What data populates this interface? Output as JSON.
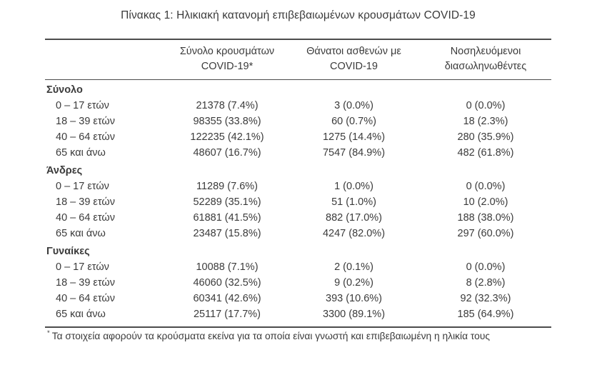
{
  "title": "Πίνακας 1: Ηλικιακή κατανομή επιβεβαιωμένων κρουσμάτων COVID-19",
  "table": {
    "headers": [
      {
        "line1": "Σύνολο κρουσμάτων",
        "line2": "COVID-19*"
      },
      {
        "line1": "Θάνατοι ασθενών με",
        "line2": "COVID-19"
      },
      {
        "line1": "Νοσηλευόμενοι",
        "line2": "διασωληνωθέντες"
      }
    ],
    "sections": [
      {
        "label": "Σύνολο",
        "rows": [
          {
            "age": "0 – 17 ετών",
            "cases": "21378 (7.4%)",
            "deaths": "3 (0.0%)",
            "intubated": "0 (0.0%)"
          },
          {
            "age": "18 – 39 ετών",
            "cases": "98355 (33.8%)",
            "deaths": "60 (0.7%)",
            "intubated": "18 (2.3%)"
          },
          {
            "age": "40 – 64 ετών",
            "cases": "122235 (42.1%)",
            "deaths": "1275 (14.4%)",
            "intubated": "280 (35.9%)"
          },
          {
            "age": "65 και άνω",
            "cases": "48607 (16.7%)",
            "deaths": "7547 (84.9%)",
            "intubated": "482 (61.8%)"
          }
        ]
      },
      {
        "label": "Άνδρες",
        "rows": [
          {
            "age": "0 – 17 ετών",
            "cases": "11289 (7.6%)",
            "deaths": "1 (0.0%)",
            "intubated": "0 (0.0%)"
          },
          {
            "age": "18 – 39 ετών",
            "cases": "52289 (35.1%)",
            "deaths": "51 (1.0%)",
            "intubated": "10 (2.0%)"
          },
          {
            "age": "40 – 64 ετών",
            "cases": "61881 (41.5%)",
            "deaths": "882 (17.0%)",
            "intubated": "188 (38.0%)"
          },
          {
            "age": "65 και άνω",
            "cases": "23487 (15.8%)",
            "deaths": "4247 (82.0%)",
            "intubated": "297 (60.0%)"
          }
        ]
      },
      {
        "label": "Γυναίκες",
        "rows": [
          {
            "age": "0 – 17 ετών",
            "cases": "10088 (7.1%)",
            "deaths": "2 (0.1%)",
            "intubated": "0 (0.0%)"
          },
          {
            "age": "18 – 39 ετών",
            "cases": "46060 (32.5%)",
            "deaths": "9 (0.2%)",
            "intubated": "8 (2.8%)"
          },
          {
            "age": "40 – 64 ετών",
            "cases": "60341 (42.6%)",
            "deaths": "393 (10.6%)",
            "intubated": "92 (32.3%)"
          },
          {
            "age": "65 και άνω",
            "cases": "25117 (17.7%)",
            "deaths": "3300 (89.1%)",
            "intubated": "185 (64.9%)"
          }
        ]
      }
    ]
  },
  "footnote": {
    "marker": "*",
    "text": "Τα στοιχεία αφορούν τα κρούσματα εκείνα για τα οποία είναι γνωστή και επιβεβαιωμένη η ηλικία τους"
  }
}
